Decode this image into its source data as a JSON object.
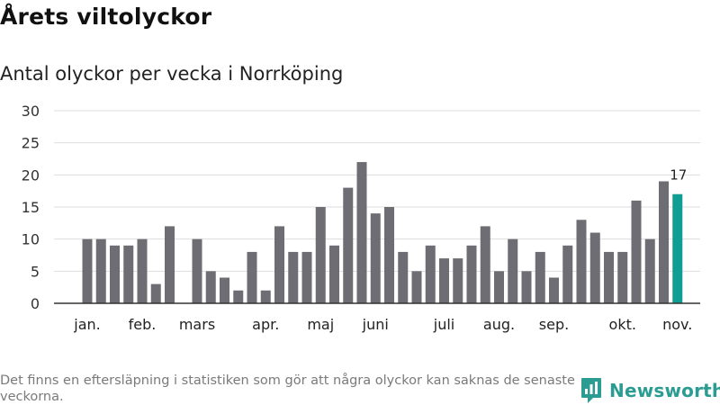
{
  "title": "Årets viltolyckor",
  "subtitle": "Antal olyckor per vecka i Norrköping",
  "footnote": "Det finns en eftersläpning i statistiken som gör att några olyckor kan saknas de senaste veckorna.",
  "brand": {
    "name": "Newsworthy",
    "icon": "newsworthy-logo-icon",
    "color": "#2a9c92"
  },
  "colors": {
    "bar": "#6e6d73",
    "highlight": "#0f9d94",
    "grid": "#dddddd"
  },
  "chart_data": {
    "type": "bar",
    "title": "",
    "xlabel": "",
    "ylabel": "",
    "ylim": [
      0,
      30
    ],
    "yticks": [
      0,
      5,
      10,
      15,
      20,
      25,
      30
    ],
    "grid": true,
    "month_labels": [
      {
        "label": "jan.",
        "week": 1
      },
      {
        "label": "feb.",
        "week": 5
      },
      {
        "label": "mars",
        "week": 9
      },
      {
        "label": "apr.",
        "week": 14
      },
      {
        "label": "maj",
        "week": 18
      },
      {
        "label": "juni",
        "week": 22
      },
      {
        "label": "juli",
        "week": 27
      },
      {
        "label": "aug.",
        "week": 31
      },
      {
        "label": "sep.",
        "week": 35
      },
      {
        "label": "okt.",
        "week": 40
      },
      {
        "label": "nov.",
        "week": 44
      }
    ],
    "weeks": [
      1,
      2,
      3,
      4,
      5,
      6,
      7,
      8,
      9,
      10,
      11,
      12,
      13,
      14,
      15,
      16,
      17,
      18,
      19,
      20,
      21,
      22,
      23,
      24,
      25,
      26,
      27,
      28,
      29,
      30,
      31,
      32,
      33,
      34,
      35,
      36,
      37,
      38,
      39,
      40,
      41,
      42,
      43,
      44
    ],
    "values": [
      10,
      10,
      9,
      9,
      10,
      3,
      12,
      0,
      10,
      5,
      4,
      2,
      8,
      2,
      12,
      8,
      8,
      15,
      9,
      18,
      22,
      14,
      15,
      8,
      5,
      9,
      7,
      7,
      9,
      12,
      5,
      10,
      5,
      8,
      4,
      9,
      13,
      11,
      8,
      8,
      16,
      10,
      19,
      17
    ],
    "highlight_index": 43,
    "data_labels": [
      {
        "index": 43,
        "text": "17"
      }
    ]
  }
}
